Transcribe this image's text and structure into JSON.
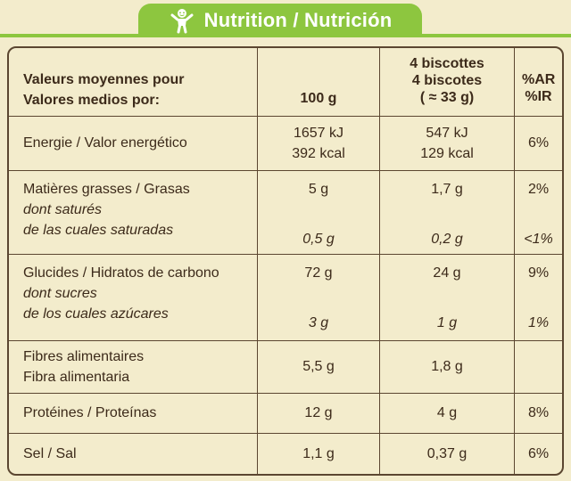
{
  "header": {
    "title": "Nutrition / Nutrición",
    "icon": "child-figure-icon",
    "accent_color": "#8dc63f"
  },
  "table": {
    "columns": {
      "label_line1": "Valeurs moyennes pour",
      "label_line2": "Valores medios por:",
      "per100": "100 g",
      "portion_line1": "4 biscottes",
      "portion_line2": "4 biscotes",
      "portion_line3": "( ≈ 33 g)",
      "ri_line1": "%AR",
      "ri_line2": "%IR"
    },
    "energy": {
      "label": "Energie / Valor energético",
      "per100_kj": "1657 kJ",
      "per100_kcal": "392 kcal",
      "portion_kj": "547 kJ",
      "portion_kcal": "129 kcal",
      "ri": "6%"
    },
    "fat": {
      "label": "Matières grasses / Grasas",
      "sub_line1": "dont saturés",
      "sub_line2": "de las cuales saturadas",
      "per100": "5 g",
      "portion": "1,7 g",
      "ri": "2%",
      "sub_per100": "0,5 g",
      "sub_portion": "0,2 g",
      "sub_ri": "<1%"
    },
    "carbs": {
      "label": "Glucides / Hidratos de carbono",
      "sub_line1": "dont sucres",
      "sub_line2": "de los cuales azúcares",
      "per100": "72 g",
      "portion": "24 g",
      "ri": "9%",
      "sub_per100": "3 g",
      "sub_portion": "1 g",
      "sub_ri": "1%"
    },
    "fibre": {
      "label_line1": "Fibres alimentaires",
      "label_line2": "Fibra alimentaria",
      "per100": "5,5 g",
      "portion": "1,8 g",
      "ri": ""
    },
    "protein": {
      "label": "Protéines / Proteínas",
      "per100": "12 g",
      "portion": "4 g",
      "ri": "8%"
    },
    "salt": {
      "label": "Sel / Sal",
      "per100": "1,1 g",
      "portion": "0,37 g",
      "ri": "6%"
    }
  }
}
